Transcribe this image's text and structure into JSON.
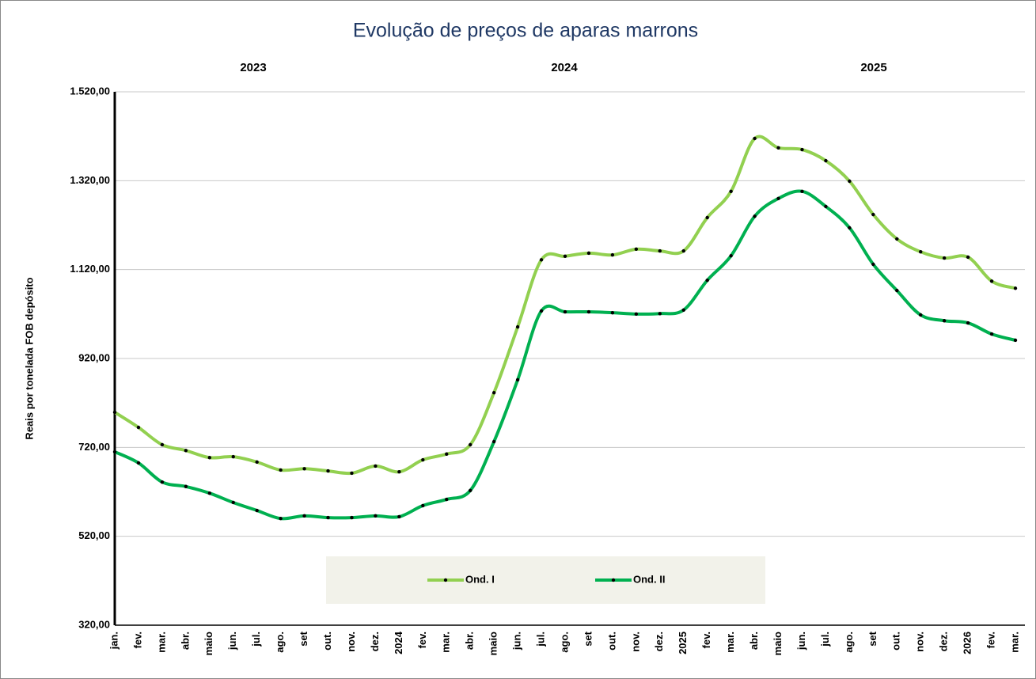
{
  "chart_data": {
    "type": "line",
    "title": "Evolução de preços de aparas marrons",
    "y_label": "Reais por tonelada FOB depósito",
    "year_labels": [
      "2023",
      "2024",
      "2025"
    ],
    "categories": [
      "jan.",
      "fev.",
      "mar.",
      "abr.",
      "maio",
      "jun.",
      "jul.",
      "ago.",
      "set",
      "out.",
      "nov.",
      "dez.",
      "2024",
      "fev.",
      "mar.",
      "abr.",
      "maio",
      "jun.",
      "jul.",
      "ago.",
      "set",
      "out.",
      "nov.",
      "dez.",
      "2025",
      "fev.",
      "mar.",
      "abr.",
      "maio",
      "jun.",
      "jul.",
      "ago.",
      "set",
      "out.",
      "nov.",
      "dez.",
      "2026",
      "fev.",
      "mar."
    ],
    "series": [
      {
        "name": "Ond. I",
        "color": "#92d050",
        "values": [
          799,
          765,
          726,
          713,
          697,
          699,
          687,
          669,
          672,
          667,
          662,
          678,
          665,
          692,
          705,
          726,
          843,
          991,
          1142,
          1150,
          1157,
          1153,
          1166,
          1162,
          1162,
          1237,
          1296,
          1415,
          1394,
          1390,
          1365,
          1319,
          1244,
          1189,
          1160,
          1146,
          1148,
          1094,
          1078
        ]
      },
      {
        "name": "Ond. II",
        "color": "#00b050",
        "values": [
          710,
          685,
          642,
          632,
          617,
          596,
          578,
          560,
          566,
          562,
          562,
          566,
          564,
          589,
          603,
          623,
          733,
          872,
          1027,
          1025,
          1025,
          1023,
          1020,
          1021,
          1029,
          1096,
          1151,
          1240,
          1280,
          1296,
          1262,
          1214,
          1132,
          1073,
          1018,
          1005,
          1000,
          975,
          961
        ]
      }
    ],
    "ylim": [
      320,
      1520
    ],
    "yticks": [
      {
        "value": 320,
        "label": "320,00"
      },
      {
        "value": 520,
        "label": "520,00"
      },
      {
        "value": 720,
        "label": "720,00"
      },
      {
        "value": 920,
        "label": "920,00"
      },
      {
        "value": 1120,
        "label": "1.120,00"
      },
      {
        "value": 1320,
        "label": "1.320,00"
      },
      {
        "value": 1520,
        "label": "1.520,00"
      }
    ],
    "grid": true,
    "legend": "bottom"
  }
}
